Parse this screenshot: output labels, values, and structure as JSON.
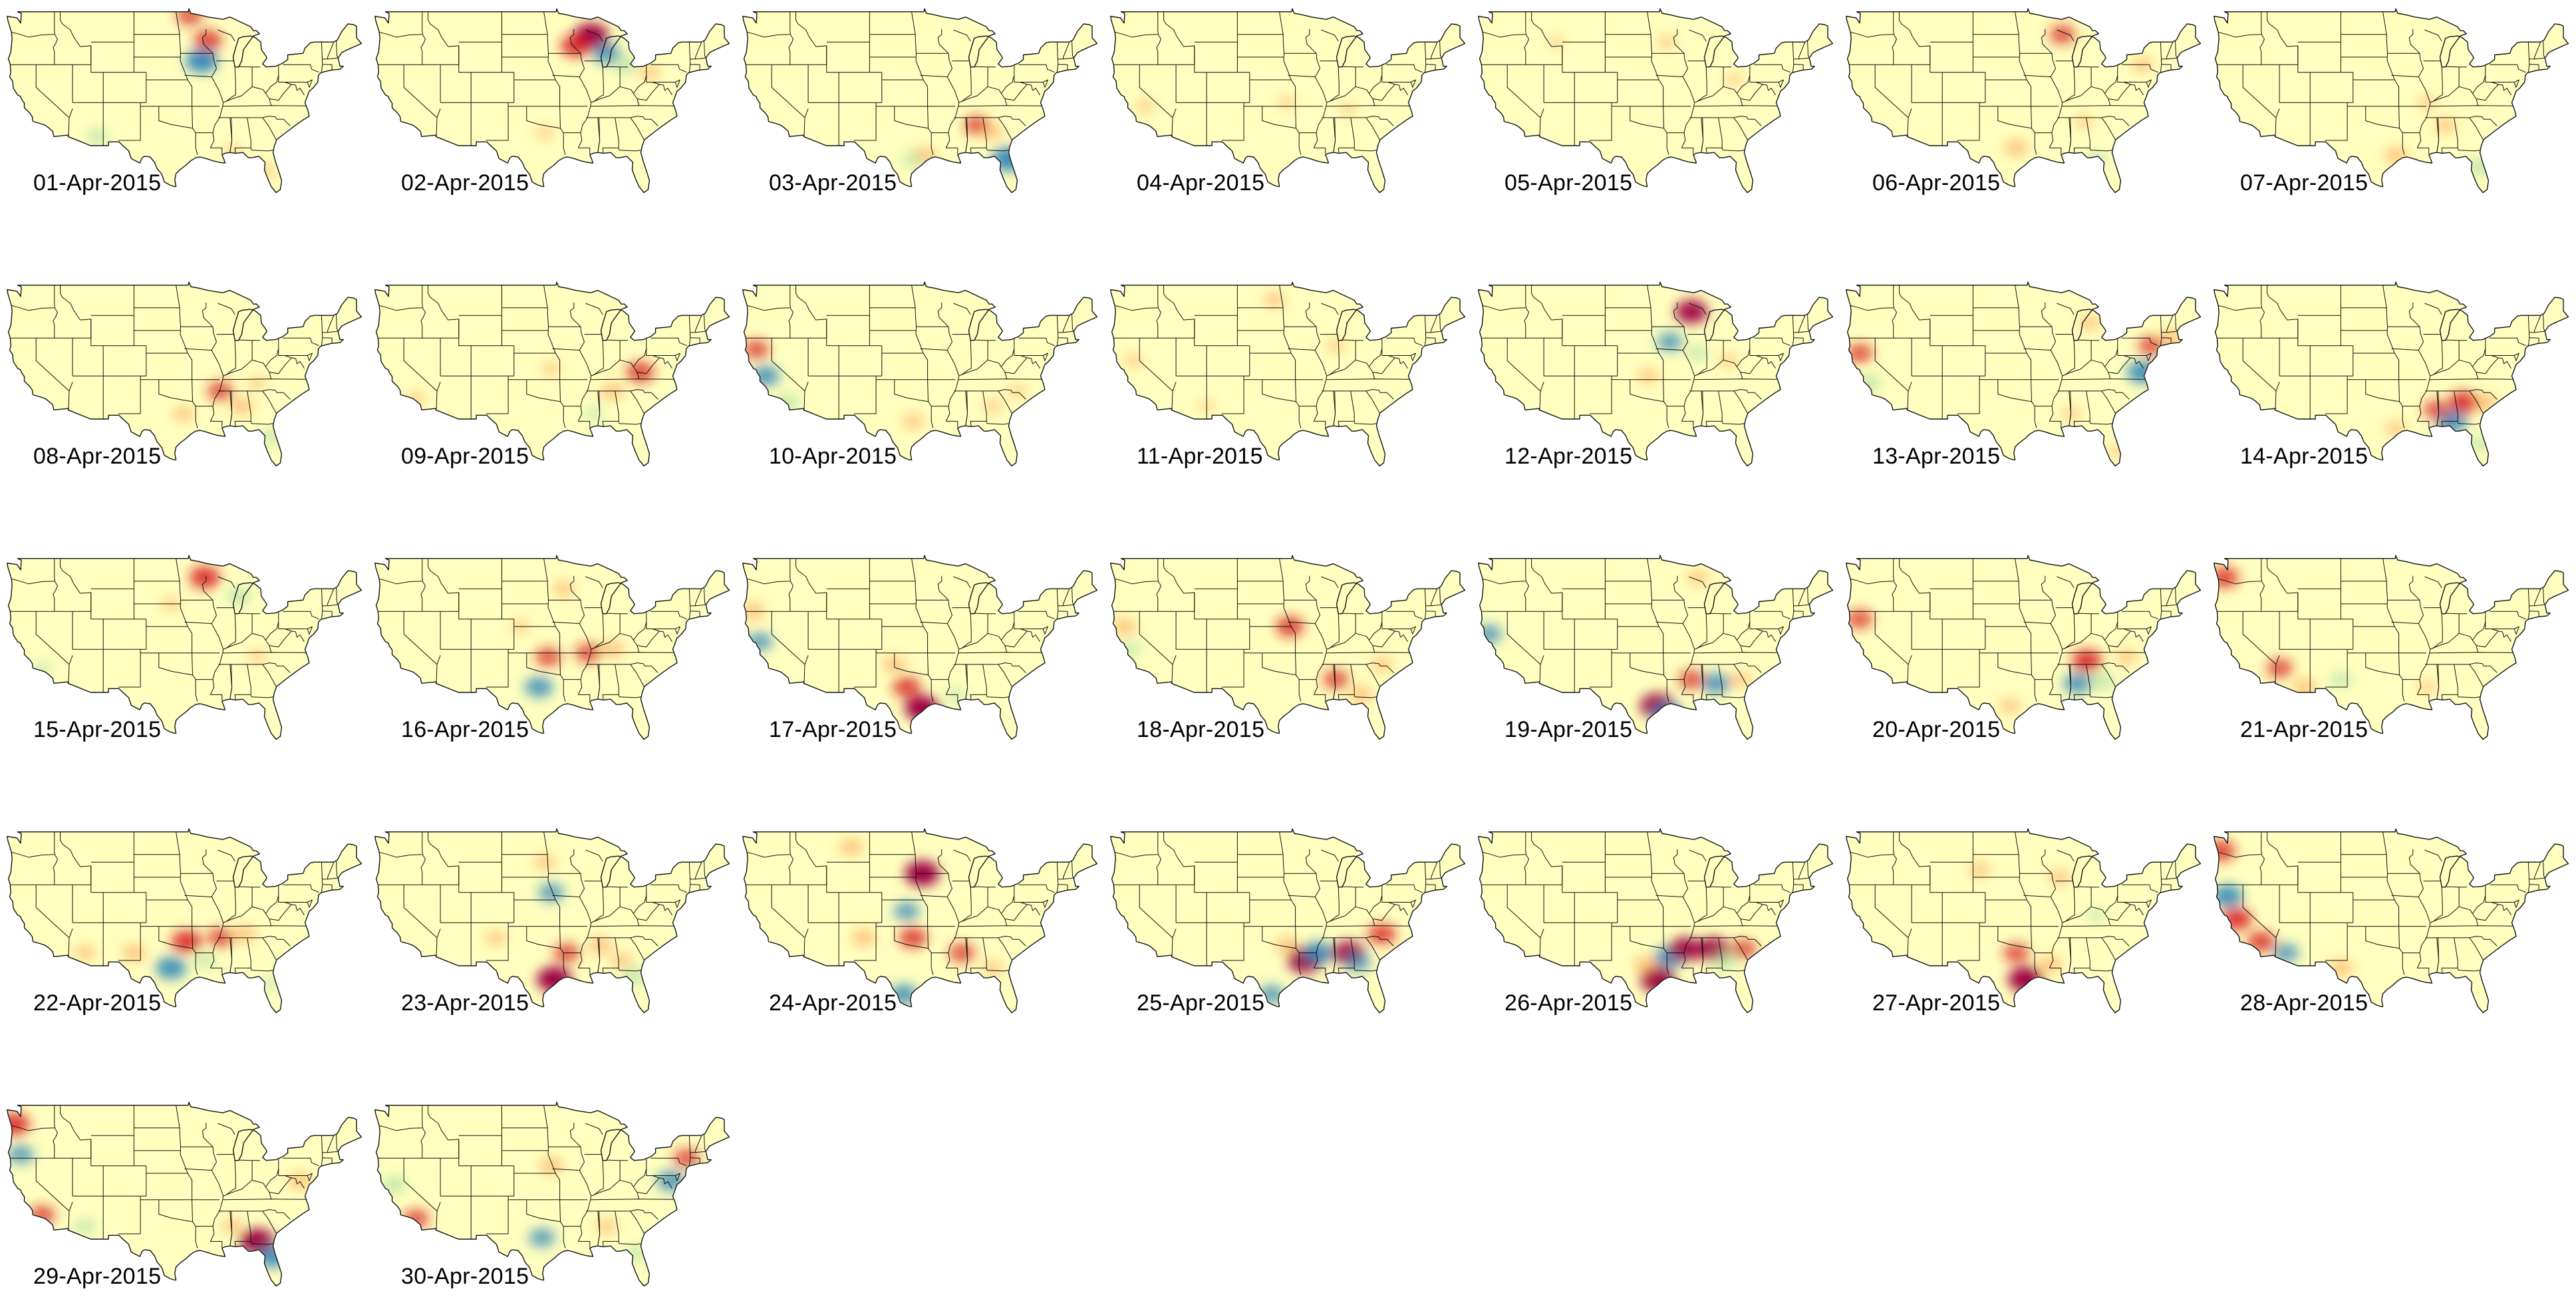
{
  "colors": {
    "base": "#ffffbf",
    "border": "#111111",
    "scale": [
      "#2b83ba",
      "#abdda4",
      "#ffffbf",
      "#fdae61",
      "#d7191c",
      "#9e0142"
    ]
  },
  "panels": [
    {
      "date": "01-Apr-2015",
      "anomalies": [
        {
          "lon": -93,
          "lat": 42.5,
          "v": -0.9
        },
        {
          "lon": -92,
          "lat": 45.2,
          "v": 0.7
        },
        {
          "lon": -95,
          "lat": 48.5,
          "v": 0.6
        },
        {
          "lon": -110,
          "lat": 32.5,
          "v": -0.4
        },
        {
          "lon": -82.5,
          "lat": 28,
          "v": 0.3
        },
        {
          "lon": -88,
          "lat": 30.5,
          "v": 0.25
        }
      ]
    },
    {
      "date": "02-Apr-2015",
      "anomalies": [
        {
          "lon": -89.5,
          "lat": 45.8,
          "v": 1.0
        },
        {
          "lon": -87,
          "lat": 43.5,
          "v": -0.7
        },
        {
          "lon": -92,
          "lat": 44.5,
          "v": 0.8
        },
        {
          "lon": -84,
          "lat": 42,
          "v": -0.5
        },
        {
          "lon": -80,
          "lat": 41,
          "v": 0.4
        },
        {
          "lon": -97,
          "lat": 33,
          "v": 0.3
        }
      ]
    },
    {
      "date": "03-Apr-2015",
      "anomalies": [
        {
          "lon": -81.5,
          "lat": 29.5,
          "v": -0.9
        },
        {
          "lon": -86.5,
          "lat": 34,
          "v": 0.6
        },
        {
          "lon": -95,
          "lat": 30,
          "v": 0.5
        },
        {
          "lon": -84,
          "lat": 33,
          "v": 0.4
        },
        {
          "lon": -97,
          "lat": 29.5,
          "v": -0.4
        }
      ]
    },
    {
      "date": "04-Apr-2015",
      "anomalies": [
        {
          "lon": -119,
          "lat": 36.5,
          "v": 0.3
        },
        {
          "lon": -96,
          "lat": 37,
          "v": 0.25
        },
        {
          "lon": -86,
          "lat": 36,
          "v": 0.25
        }
      ]
    },
    {
      "date": "05-Apr-2015",
      "anomalies": [
        {
          "lon": -94,
          "lat": 45,
          "v": 0.3
        },
        {
          "lon": -83,
          "lat": 40,
          "v": 0.25
        },
        {
          "lon": -112,
          "lat": 45,
          "v": 0.2
        }
      ]
    },
    {
      "date": "06-Apr-2015",
      "anomalies": [
        {
          "lon": -89.5,
          "lat": 46,
          "v": 0.6
        },
        {
          "lon": -97,
          "lat": 31,
          "v": 0.5
        },
        {
          "lon": -76.5,
          "lat": 42,
          "v": 0.4
        },
        {
          "lon": -84,
          "lat": 29.5,
          "v": -0.4
        },
        {
          "lon": -86,
          "lat": 34.5,
          "v": 0.3
        }
      ]
    },
    {
      "date": "07-Apr-2015",
      "anomalies": [
        {
          "lon": -81.5,
          "lat": 28.5,
          "v": -0.5
        },
        {
          "lon": -95,
          "lat": 30,
          "v": 0.5
        },
        {
          "lon": -87,
          "lat": 34,
          "v": 0.4
        },
        {
          "lon": -90,
          "lat": 37,
          "v": 0.3
        }
      ]
    },
    {
      "date": "08-Apr-2015",
      "anomalies": [
        {
          "lon": -90,
          "lat": 35,
          "v": 0.6
        },
        {
          "lon": -86.5,
          "lat": 33,
          "v": 0.5
        },
        {
          "lon": -96,
          "lat": 32,
          "v": 0.4
        },
        {
          "lon": -81.5,
          "lat": 29,
          "v": -0.4
        },
        {
          "lon": -84,
          "lat": 36,
          "v": 0.3
        }
      ]
    },
    {
      "date": "09-Apr-2015",
      "anomalies": [
        {
          "lon": -81.5,
          "lat": 37.5,
          "v": 0.7
        },
        {
          "lon": -86,
          "lat": 35,
          "v": 0.5
        },
        {
          "lon": -96,
          "lat": 38,
          "v": 0.3
        },
        {
          "lon": -118,
          "lat": 34,
          "v": 0.3
        },
        {
          "lon": -89,
          "lat": 32,
          "v": -0.3
        }
      ]
    },
    {
      "date": "10-Apr-2015",
      "anomalies": [
        {
          "lon": -121,
          "lat": 37,
          "v": -0.7
        },
        {
          "lon": -122.5,
          "lat": 40.5,
          "v": 0.6
        },
        {
          "lon": -117.5,
          "lat": 33.5,
          "v": -0.5
        },
        {
          "lon": -97,
          "lat": 31,
          "v": 0.4
        },
        {
          "lon": -84,
          "lat": 33,
          "v": 0.3
        },
        {
          "lon": -80,
          "lat": 35,
          "v": 0.3
        }
      ]
    },
    {
      "date": "11-Apr-2015",
      "anomalies": [
        {
          "lon": -98,
          "lat": 47,
          "v": 0.4
        },
        {
          "lon": -88,
          "lat": 41,
          "v": 0.3
        },
        {
          "lon": -121,
          "lat": 39,
          "v": 0.3
        },
        {
          "lon": -109,
          "lat": 33,
          "v": 0.2
        }
      ]
    },
    {
      "date": "12-Apr-2015",
      "anomalies": [
        {
          "lon": -90,
          "lat": 45.5,
          "v": 0.9
        },
        {
          "lon": -93.5,
          "lat": 41.5,
          "v": -0.6
        },
        {
          "lon": -89,
          "lat": 40,
          "v": -0.4
        },
        {
          "lon": -97,
          "lat": 37,
          "v": 0.4
        },
        {
          "lon": -84,
          "lat": 39,
          "v": 0.3
        }
      ]
    },
    {
      "date": "13-Apr-2015",
      "anomalies": [
        {
          "lon": -76.5,
          "lat": 37.5,
          "v": -0.8
        },
        {
          "lon": -75,
          "lat": 41,
          "v": 0.6
        },
        {
          "lon": -71.5,
          "lat": 42,
          "v": 0.5
        },
        {
          "lon": -122.5,
          "lat": 40,
          "v": 0.6
        },
        {
          "lon": -121,
          "lat": 36,
          "v": -0.5
        },
        {
          "lon": -85,
          "lat": 44,
          "v": 0.4
        },
        {
          "lon": -88,
          "lat": 32,
          "v": 0.3
        },
        {
          "lon": -80.5,
          "lat": 27,
          "v": 0.3
        }
      ]
    },
    {
      "date": "14-Apr-2015",
      "anomalies": [
        {
          "lon": -86,
          "lat": 31,
          "v": -0.8
        },
        {
          "lon": -84,
          "lat": 33.5,
          "v": 0.8
        },
        {
          "lon": -88.5,
          "lat": 32.5,
          "v": 0.6
        },
        {
          "lon": -80.5,
          "lat": 33.5,
          "v": 0.5
        },
        {
          "lon": -95,
          "lat": 30,
          "v": 0.4
        },
        {
          "lon": -81.5,
          "lat": 28,
          "v": -0.4
        }
      ]
    },
    {
      "date": "15-Apr-2015",
      "anomalies": [
        {
          "lon": -92.5,
          "lat": 46.5,
          "v": 0.8
        },
        {
          "lon": -87,
          "lat": 44,
          "v": -0.5
        },
        {
          "lon": -84,
          "lat": 36,
          "v": 0.3
        },
        {
          "lon": -119,
          "lat": 34.5,
          "v": -0.3
        },
        {
          "lon": -98,
          "lat": 43,
          "v": 0.3
        }
      ]
    },
    {
      "date": "16-Apr-2015",
      "anomalies": [
        {
          "lon": -98,
          "lat": 32,
          "v": -0.7
        },
        {
          "lon": -96.5,
          "lat": 36,
          "v": 0.6
        },
        {
          "lon": -90,
          "lat": 36.5,
          "v": 0.6
        },
        {
          "lon": -86,
          "lat": 37,
          "v": 0.5
        },
        {
          "lon": -94,
          "lat": 45,
          "v": 0.4
        },
        {
          "lon": -101,
          "lat": 40,
          "v": 0.3
        }
      ]
    },
    {
      "date": "17-Apr-2015",
      "anomalies": [
        {
          "lon": -95.5,
          "lat": 29.2,
          "v": 1.0
        },
        {
          "lon": -98,
          "lat": 32,
          "v": 0.7
        },
        {
          "lon": -100,
          "lat": 35,
          "v": 0.5
        },
        {
          "lon": -122,
          "lat": 38,
          "v": -0.6
        },
        {
          "lon": -123,
          "lat": 42,
          "v": 0.5
        },
        {
          "lon": -90,
          "lat": 31,
          "v": -0.3
        }
      ]
    },
    {
      "date": "18-Apr-2015",
      "anomalies": [
        {
          "lon": -95.5,
          "lat": 40,
          "v": 0.7
        },
        {
          "lon": -88,
          "lat": 33,
          "v": 0.6
        },
        {
          "lon": -84,
          "lat": 31,
          "v": 0.5
        },
        {
          "lon": -122.5,
          "lat": 40,
          "v": 0.5
        },
        {
          "lon": -121.5,
          "lat": 37,
          "v": -0.4
        },
        {
          "lon": -80.5,
          "lat": 35,
          "v": 0.4
        }
      ]
    },
    {
      "date": "19-Apr-2015",
      "anomalies": [
        {
          "lon": -95.5,
          "lat": 29.5,
          "v": 1.0
        },
        {
          "lon": -94,
          "lat": 28.5,
          "v": -0.8
        },
        {
          "lon": -86,
          "lat": 32.5,
          "v": -0.7
        },
        {
          "lon": -90,
          "lat": 33,
          "v": 0.6
        },
        {
          "lon": -82,
          "lat": 33,
          "v": 0.4
        },
        {
          "lon": -123,
          "lat": 39,
          "v": -0.6
        },
        {
          "lon": -89,
          "lat": 46.5,
          "v": 0.4
        }
      ]
    },
    {
      "date": "20-Apr-2015",
      "anomalies": [
        {
          "lon": -85.5,
          "lat": 35.5,
          "v": 0.8
        },
        {
          "lon": -87,
          "lat": 32.5,
          "v": -0.7
        },
        {
          "lon": -83,
          "lat": 32.8,
          "v": -0.5
        },
        {
          "lon": -122.5,
          "lat": 41,
          "v": 0.6
        },
        {
          "lon": -79,
          "lat": 36,
          "v": 0.4
        },
        {
          "lon": -98,
          "lat": 29.5,
          "v": 0.4
        }
      ]
    },
    {
      "date": "21-Apr-2015",
      "anomalies": [
        {
          "lon": -114,
          "lat": 34.5,
          "v": 0.6
        },
        {
          "lon": -110,
          "lat": 32,
          "v": 0.5
        },
        {
          "lon": -123,
          "lat": 46.5,
          "v": 0.7
        },
        {
          "lon": -104,
          "lat": 33,
          "v": -0.4
        },
        {
          "lon": -90,
          "lat": 32,
          "v": 0.3
        }
      ]
    },
    {
      "date": "22-Apr-2015",
      "anomalies": [
        {
          "lon": -98,
          "lat": 31,
          "v": -0.8
        },
        {
          "lon": -95.5,
          "lat": 34.5,
          "v": 0.8
        },
        {
          "lon": -90,
          "lat": 35,
          "v": 0.6
        },
        {
          "lon": -86,
          "lat": 35.5,
          "v": 0.5
        },
        {
          "lon": -104,
          "lat": 33,
          "v": 0.5
        },
        {
          "lon": -112,
          "lat": 33,
          "v": 0.4
        },
        {
          "lon": -92.5,
          "lat": 32,
          "v": -0.4
        },
        {
          "lon": -81.5,
          "lat": 29,
          "v": -0.3
        }
      ]
    },
    {
      "date": "23-Apr-2015",
      "anomalies": [
        {
          "lon": -95.5,
          "lat": 29.5,
          "v": 1.0
        },
        {
          "lon": -96,
          "lat": 41,
          "v": -0.6
        },
        {
          "lon": -93.5,
          "lat": 33,
          "v": 0.6
        },
        {
          "lon": -88,
          "lat": 34,
          "v": 0.5
        },
        {
          "lon": -82.5,
          "lat": 30,
          "v": -0.5
        },
        {
          "lon": -84.5,
          "lat": 32,
          "v": 0.4
        },
        {
          "lon": -105,
          "lat": 35,
          "v": 0.4
        },
        {
          "lon": -97,
          "lat": 45,
          "v": 0.4
        }
      ]
    },
    {
      "date": "24-Apr-2015",
      "anomalies": [
        {
          "lon": -95.5,
          "lat": 43.5,
          "v": 1.0
        },
        {
          "lon": -98,
          "lat": 38.5,
          "v": -0.6
        },
        {
          "lon": -97,
          "lat": 35,
          "v": 0.7
        },
        {
          "lon": -98.5,
          "lat": 27.5,
          "v": -0.7
        },
        {
          "lon": -89,
          "lat": 33,
          "v": 0.6
        },
        {
          "lon": -105,
          "lat": 35,
          "v": 0.5
        },
        {
          "lon": -107,
          "lat": 47,
          "v": 0.5
        },
        {
          "lon": -84,
          "lat": 31,
          "v": 0.4
        }
      ]
    },
    {
      "date": "25-Apr-2015",
      "anomalies": [
        {
          "lon": -93,
          "lat": 32,
          "v": 1.0
        },
        {
          "lon": -91,
          "lat": 33,
          "v": -0.8
        },
        {
          "lon": -86,
          "lat": 33,
          "v": 0.9
        },
        {
          "lon": -84.5,
          "lat": 31.8,
          "v": -0.6
        },
        {
          "lon": -80.5,
          "lat": 35.5,
          "v": 0.7
        },
        {
          "lon": -96,
          "lat": 34,
          "v": 0.5
        },
        {
          "lon": -98.5,
          "lat": 27.5,
          "v": -0.6
        }
      ]
    },
    {
      "date": "26-Apr-2015",
      "anomalies": [
        {
          "lon": -95.5,
          "lat": 29.5,
          "v": 1.0
        },
        {
          "lon": -93.5,
          "lat": 32.5,
          "v": -0.8
        },
        {
          "lon": -91,
          "lat": 33.5,
          "v": 0.9
        },
        {
          "lon": -86.5,
          "lat": 33.5,
          "v": 0.9
        },
        {
          "lon": -84.5,
          "lat": 32,
          "v": -0.5
        },
        {
          "lon": -97.5,
          "lat": 31.5,
          "v": 0.5
        },
        {
          "lon": -81.5,
          "lat": 33.5,
          "v": 0.6
        }
      ]
    },
    {
      "date": "27-Apr-2015",
      "anomalies": [
        {
          "lon": -95.5,
          "lat": 29.5,
          "v": 1.0
        },
        {
          "lon": -97,
          "lat": 33,
          "v": 0.6
        },
        {
          "lon": -91.5,
          "lat": 31.5,
          "v": 0.5
        },
        {
          "lon": -90,
          "lat": 43,
          "v": 0.4
        },
        {
          "lon": -84,
          "lat": 38,
          "v": -0.3
        },
        {
          "lon": -103,
          "lat": 44,
          "v": 0.4
        }
      ]
    },
    {
      "date": "28-Apr-2015",
      "anomalies": [
        {
          "lon": -122.5,
          "lat": 40.5,
          "v": -0.8
        },
        {
          "lon": -121,
          "lat": 37.5,
          "v": 0.8
        },
        {
          "lon": -117,
          "lat": 34.5,
          "v": 0.7
        },
        {
          "lon": -113,
          "lat": 33,
          "v": -0.6
        },
        {
          "lon": -123.5,
          "lat": 46.5,
          "v": 0.7
        },
        {
          "lon": -104,
          "lat": 31,
          "v": 0.5
        }
      ]
    },
    {
      "date": "29-Apr-2015",
      "anomalies": [
        {
          "lon": -84,
          "lat": 31,
          "v": 1.0
        },
        {
          "lon": -81.5,
          "lat": 29,
          "v": -0.8
        },
        {
          "lon": -123.5,
          "lat": 46.5,
          "v": 0.8
        },
        {
          "lon": -122.5,
          "lat": 42.5,
          "v": -0.6
        },
        {
          "lon": -119,
          "lat": 34.5,
          "v": 0.6
        },
        {
          "lon": -112,
          "lat": 33,
          "v": -0.4
        },
        {
          "lon": -77,
          "lat": 39,
          "v": 0.5
        },
        {
          "lon": -88,
          "lat": 33,
          "v": 0.4
        }
      ]
    },
    {
      "date": "30-Apr-2015",
      "anomalies": [
        {
          "lon": -76.5,
          "lat": 39,
          "v": -0.7
        },
        {
          "lon": -74,
          "lat": 42,
          "v": 0.6
        },
        {
          "lon": -97.5,
          "lat": 31.5,
          "v": -0.6
        },
        {
          "lon": -121.5,
          "lat": 38.5,
          "v": -0.5
        },
        {
          "lon": -118,
          "lat": 34,
          "v": 0.6
        },
        {
          "lon": -96,
          "lat": 41,
          "v": 0.5
        },
        {
          "lon": -82,
          "lat": 29.5,
          "v": -0.4
        },
        {
          "lon": -87,
          "lat": 33,
          "v": 0.4
        }
      ]
    }
  ]
}
